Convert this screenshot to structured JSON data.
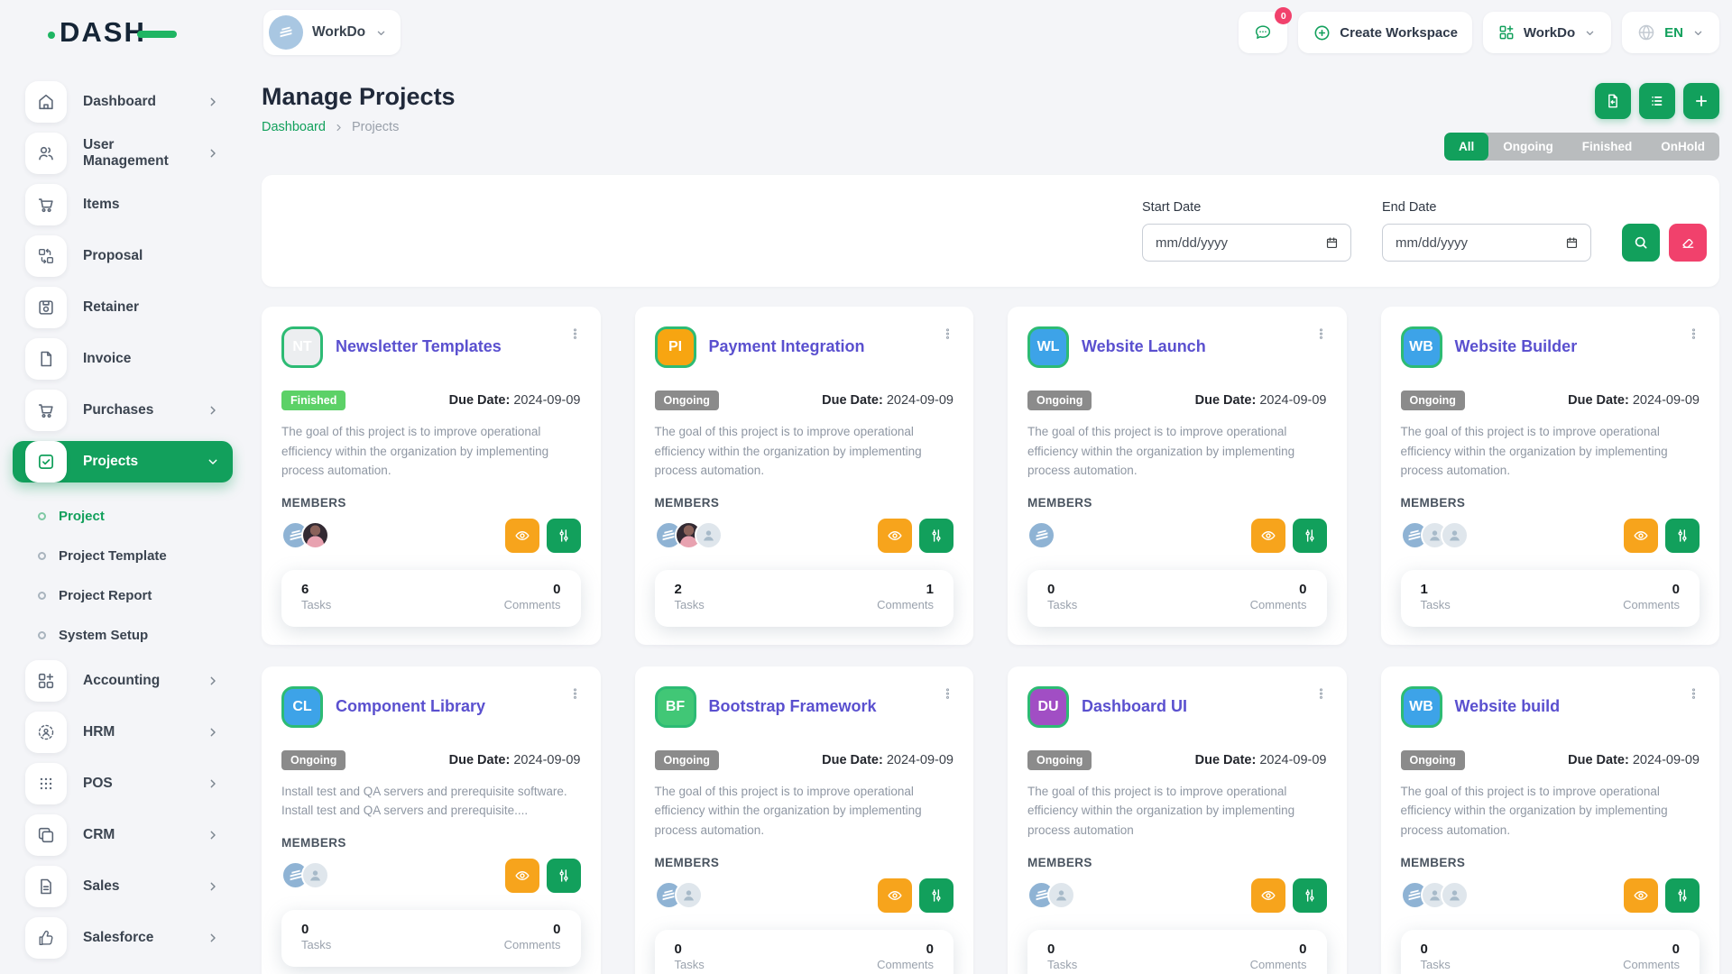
{
  "brand": {
    "name": "DASH"
  },
  "header": {
    "workspace_selector": {
      "label": "WorkDo"
    },
    "messages_badge": "0",
    "create_workspace_label": "Create Workspace",
    "workspace_menu_label": "WorkDo",
    "language": "EN"
  },
  "sidebar": {
    "items": [
      {
        "label": "Dashboard",
        "icon": "home",
        "chevron": true
      },
      {
        "label": "User Management",
        "icon": "users",
        "chevron": true
      },
      {
        "label": "Items",
        "icon": "cart",
        "chevron": false
      },
      {
        "label": "Proposal",
        "icon": "proposal",
        "chevron": false
      },
      {
        "label": "Retainer",
        "icon": "retainer",
        "chevron": false
      },
      {
        "label": "Invoice",
        "icon": "invoice",
        "chevron": false
      },
      {
        "label": "Purchases",
        "icon": "cart",
        "chevron": true
      },
      {
        "label": "Projects",
        "icon": "projects",
        "chevron": true,
        "active": true,
        "children": [
          {
            "label": "Project",
            "active": true
          },
          {
            "label": "Project Template"
          },
          {
            "label": "Project Report"
          },
          {
            "label": "System Setup"
          }
        ]
      },
      {
        "label": "Accounting",
        "icon": "accounting",
        "chevron": true
      },
      {
        "label": "HRM",
        "icon": "hrm",
        "chevron": true
      },
      {
        "label": "POS",
        "icon": "pos",
        "chevron": true
      },
      {
        "label": "CRM",
        "icon": "crm",
        "chevron": true
      },
      {
        "label": "Sales",
        "icon": "sales",
        "chevron": true
      },
      {
        "label": "Salesforce",
        "icon": "salesforce",
        "chevron": true
      }
    ]
  },
  "page": {
    "title": "Manage Projects",
    "breadcrumb": [
      "Dashboard",
      "Projects"
    ],
    "filters": [
      "All",
      "Ongoing",
      "Finished",
      "OnHold"
    ],
    "active_filter": "All",
    "start_date_label": "Start Date",
    "end_date_label": "End Date",
    "date_placeholder": "mm/dd/yyyy"
  },
  "labels": {
    "members": "MEMBERS",
    "tasks": "Tasks",
    "comments": "Comments",
    "due_date": "Due Date:"
  },
  "cards": [
    {
      "initials": "NT",
      "avatar_bg": "#eceef0",
      "avatar_fg": "#ffffff",
      "title": "Newsletter Templates",
      "status": "Finished",
      "status_type": "finished",
      "due_date": "2024-09-09",
      "description": "The goal of this project is to improve operational efficiency within the organization by implementing process automation.",
      "members": [
        "workdo",
        "photo"
      ],
      "tasks": "6",
      "comments": "0"
    },
    {
      "initials": "PI",
      "avatar_bg": "#f7a511",
      "avatar_fg": "#ffffff",
      "title": "Payment Integration",
      "status": "Ongoing",
      "status_type": "ongoing",
      "due_date": "2024-09-09",
      "description": "The goal of this project is to improve operational efficiency within the organization by implementing process automation.",
      "members": [
        "workdo",
        "photo",
        "placeholder"
      ],
      "tasks": "2",
      "comments": "1"
    },
    {
      "initials": "WL",
      "avatar_bg": "#3da3e8",
      "avatar_fg": "#ffffff",
      "title": "Website Launch",
      "status": "Ongoing",
      "status_type": "ongoing",
      "due_date": "2024-09-09",
      "description": "The goal of this project is to improve operational efficiency within the organization by implementing process automation.",
      "members": [
        "workdo"
      ],
      "tasks": "0",
      "comments": "0"
    },
    {
      "initials": "WB",
      "avatar_bg": "#3da3e8",
      "avatar_fg": "#ffffff",
      "title": "Website Builder",
      "status": "Ongoing",
      "status_type": "ongoing",
      "due_date": "2024-09-09",
      "description": "The goal of this project is to improve operational efficiency within the organization by implementing process automation.",
      "members": [
        "workdo",
        "placeholder",
        "placeholder"
      ],
      "tasks": "1",
      "comments": "0"
    },
    {
      "initials": "CL",
      "avatar_bg": "#3da3e8",
      "avatar_fg": "#ffffff",
      "title": "Component Library",
      "status": "Ongoing",
      "status_type": "ongoing",
      "due_date": "2024-09-09",
      "description": "Install test and QA servers and prerequisite software. Install test and QA servers and prerequisite....",
      "members": [
        "workdo",
        "placeholder"
      ],
      "tasks": "0",
      "comments": "0"
    },
    {
      "initials": "BF",
      "avatar_bg": "#41c776",
      "avatar_fg": "#ffffff",
      "title": "Bootstrap Framework",
      "status": "Ongoing",
      "status_type": "ongoing",
      "due_date": "2024-09-09",
      "description": "The goal of this project is to improve operational efficiency within the organization by implementing process automation.",
      "members": [
        "workdo",
        "placeholder"
      ],
      "tasks": "0",
      "comments": "0"
    },
    {
      "initials": "DU",
      "avatar_bg": "#a14ec4",
      "avatar_fg": "#ffffff",
      "title": "Dashboard UI",
      "status": "Ongoing",
      "status_type": "ongoing",
      "due_date": "2024-09-09",
      "description": "The goal of this project is to improve operational efficiency within the organization by implementing process automation",
      "members": [
        "workdo",
        "placeholder"
      ],
      "tasks": "0",
      "comments": "0"
    },
    {
      "initials": "WB",
      "avatar_bg": "#3da3e8",
      "avatar_fg": "#ffffff",
      "title": "Website build",
      "status": "Ongoing",
      "status_type": "ongoing",
      "due_date": "2024-09-09",
      "description": "The goal of this project is to improve operational efficiency within the organization by implementing process automation.",
      "members": [
        "workdo",
        "placeholder",
        "placeholder"
      ],
      "tasks": "0",
      "comments": "0"
    }
  ],
  "colors": {
    "primary_green": "#12a05c",
    "badge_finished": "#5cd167",
    "badge_ongoing": "#8b8b8b",
    "title_purple": "#5a50cf",
    "action_orange": "#f7a41c",
    "action_pink": "#f1416c",
    "avatar_ring_green": "#2dbb74"
  }
}
